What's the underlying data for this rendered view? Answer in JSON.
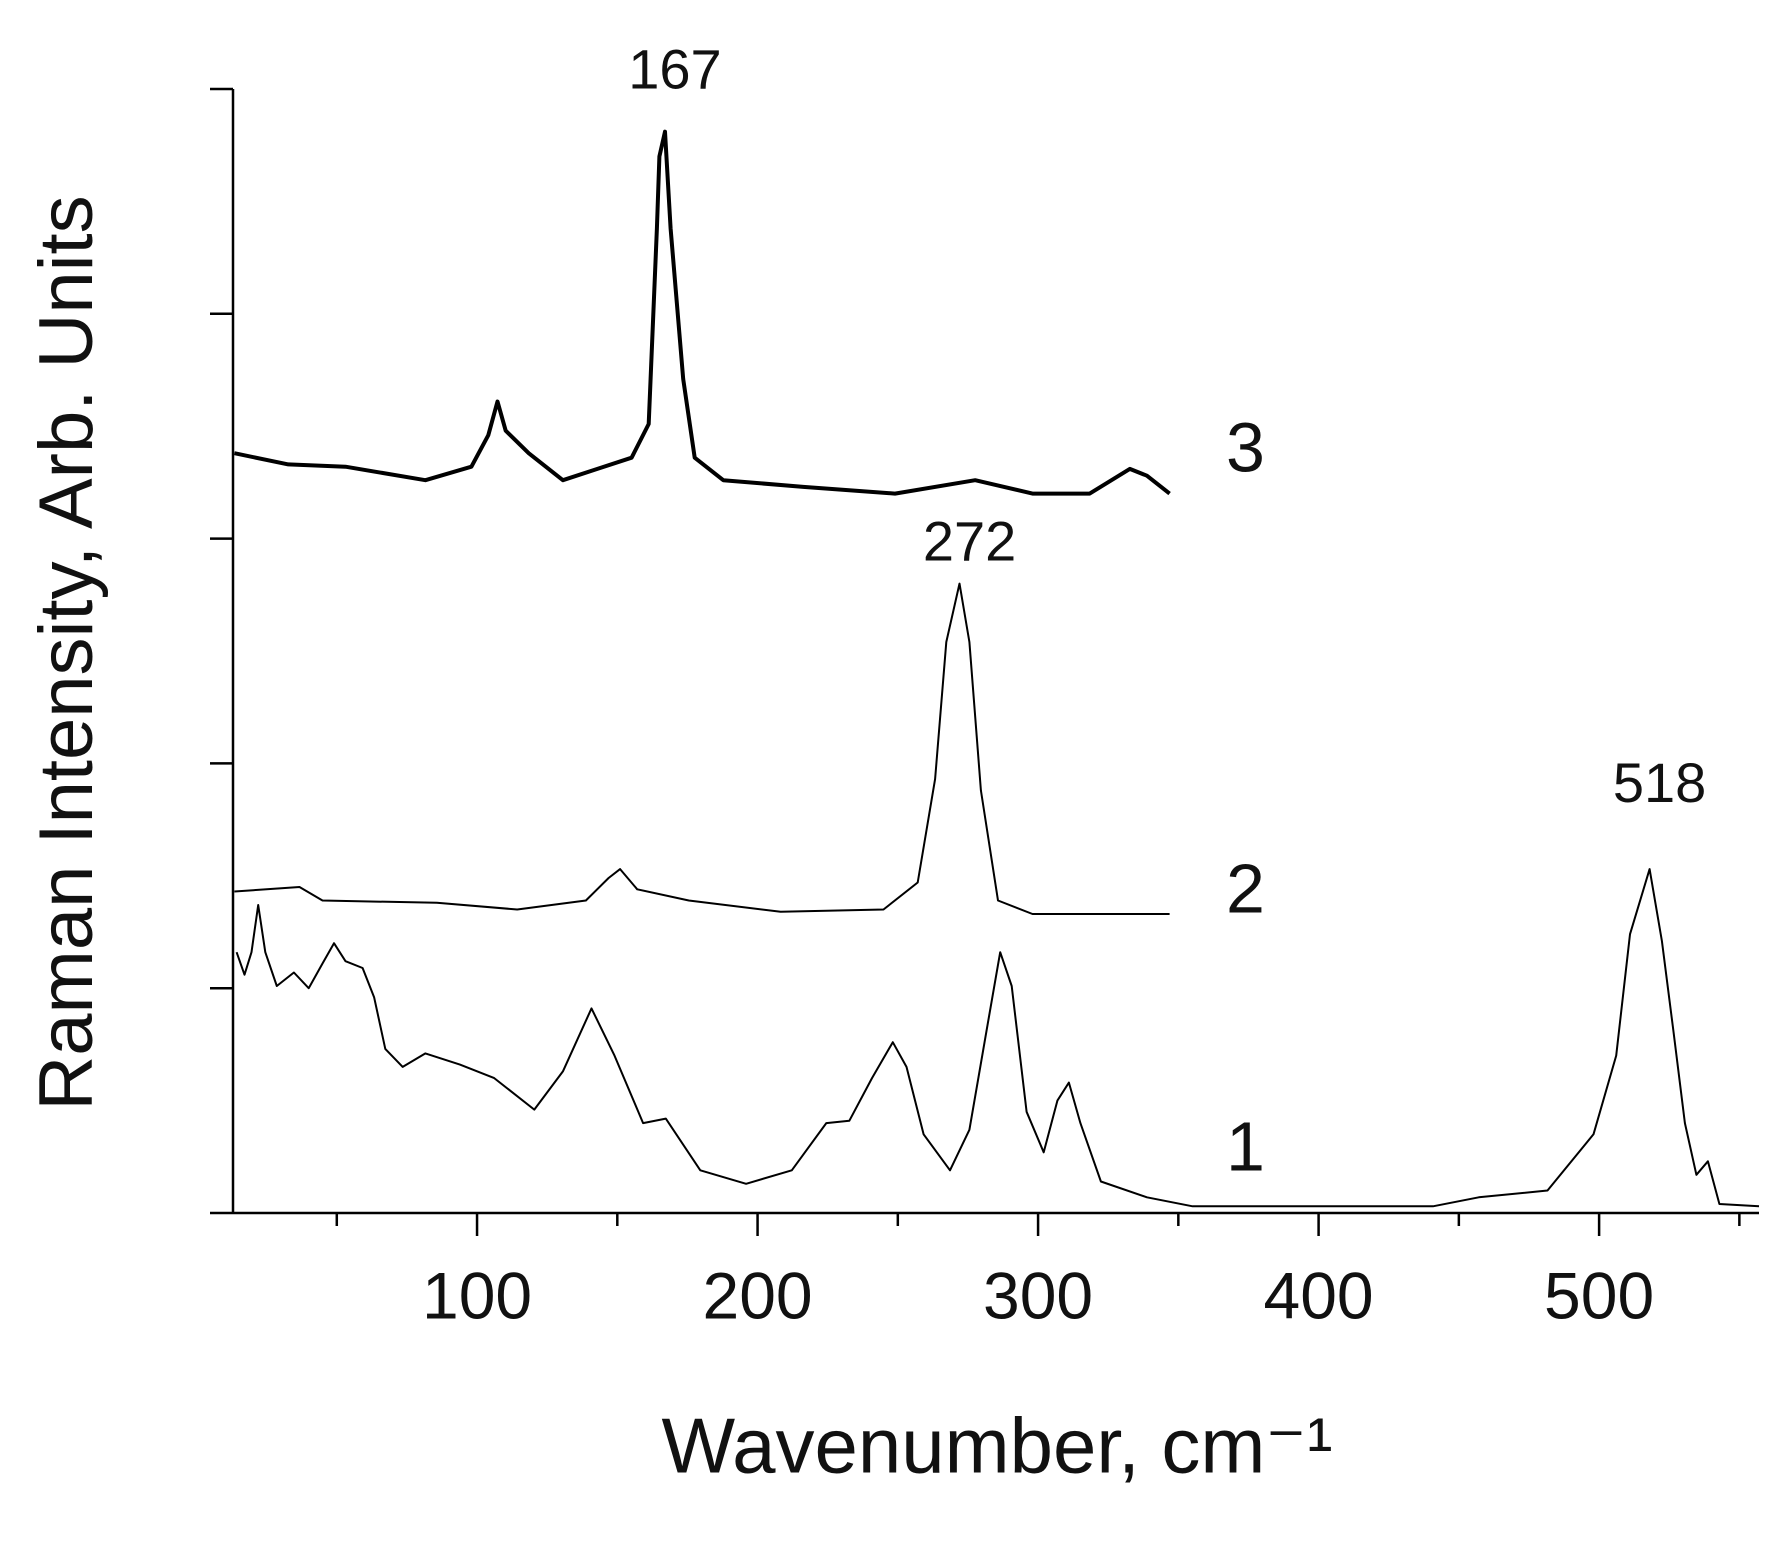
{
  "chart_data": {
    "type": "line",
    "x_label": "Wavenumber, cm⁻¹",
    "y_label": "Raman Intensity, Arb. Units",
    "xlim": [
      13,
      557
    ],
    "xticks": [
      100,
      200,
      300,
      400,
      500
    ],
    "xticks_minor": [
      50,
      150,
      250,
      350,
      450,
      550
    ],
    "ylim": [
      0,
      5
    ],
    "yticks": [
      0,
      1,
      2,
      3,
      4,
      5
    ],
    "series": [
      {
        "name": "1",
        "color": "#000000",
        "line_width": 2,
        "x": [
          14.3,
          17.1,
          19.6,
          22,
          24.5,
          28.6,
          34.7,
          40,
          44.9,
          49,
          53.1,
          59.2,
          63.3,
          67.3,
          73.5,
          81.6,
          93.9,
          106.1,
          120.4,
          130.6,
          140.8,
          149,
          159.2,
          167.3,
          179.6,
          195.9,
          212.2,
          224.5,
          232.7,
          240.8,
          248.2,
          253.1,
          259.2,
          268.6,
          275.5,
          281.6,
          286.5,
          290.6,
          295.9,
          302,
          306.9,
          311,
          315.1,
          322.4,
          338.8,
          355.1,
          440.8,
          457.1,
          481.6,
          498,
          506.1,
          511,
          518,
          522.4,
          526.5,
          530.6,
          534.7,
          538.8,
          542.9,
          557
        ],
        "values": [
          1.16,
          1.06,
          1.16,
          1.37,
          1.16,
          1.01,
          1.07,
          1.0,
          1.11,
          1.2,
          1.12,
          1.09,
          0.96,
          0.73,
          0.65,
          0.71,
          0.66,
          0.6,
          0.46,
          0.63,
          0.91,
          0.7,
          0.4,
          0.42,
          0.19,
          0.13,
          0.19,
          0.4,
          0.41,
          0.6,
          0.76,
          0.65,
          0.35,
          0.19,
          0.37,
          0.81,
          1.16,
          1.01,
          0.45,
          0.27,
          0.5,
          0.58,
          0.4,
          0.14,
          0.07,
          0.03,
          0.03,
          0.07,
          0.1,
          0.35,
          0.7,
          1.24,
          1.53,
          1.21,
          0.81,
          0.4,
          0.17,
          0.23,
          0.04,
          0.03
        ]
      },
      {
        "name": "2",
        "color": "#000000",
        "line_width": 2,
        "x": [
          13.5,
          36.7,
          44.9,
          85.7,
          114.3,
          138.8,
          146.9,
          151,
          157.1,
          175.5,
          208.2,
          244.9,
          257.1,
          263.3,
          267.3,
          272,
          275.5,
          279.6,
          285.7,
          298,
          346.9
        ],
        "values": [
          1.43,
          1.45,
          1.39,
          1.38,
          1.35,
          1.39,
          1.49,
          1.53,
          1.44,
          1.39,
          1.34,
          1.35,
          1.47,
          1.93,
          2.54,
          2.8,
          2.54,
          1.88,
          1.39,
          1.33,
          1.33
        ]
      },
      {
        "name": "3",
        "color": "#000000",
        "line_width": 4,
        "x": [
          13.5,
          32.7,
          53.1,
          81.6,
          98,
          104,
          107.3,
          110.2,
          118.4,
          130.6,
          142.9,
          155.1,
          161.2,
          164.1,
          165,
          167,
          169,
          173.5,
          177.6,
          187.8,
          216.3,
          249,
          277.6,
          298,
          318.4,
          332.7,
          338.8,
          346.9
        ],
        "values": [
          3.38,
          3.33,
          3.32,
          3.26,
          3.32,
          3.46,
          3.61,
          3.48,
          3.38,
          3.26,
          3.31,
          3.36,
          3.51,
          4.38,
          4.7,
          4.81,
          4.38,
          3.71,
          3.36,
          3.26,
          3.23,
          3.2,
          3.26,
          3.2,
          3.2,
          3.31,
          3.28,
          3.2
        ]
      }
    ],
    "annotations": [
      {
        "text": "167",
        "x": 167,
        "y": 4.81
      },
      {
        "text": "272",
        "x": 272,
        "y": 2.8
      },
      {
        "text": "518",
        "x": 518,
        "y": 1.53
      }
    ]
  }
}
